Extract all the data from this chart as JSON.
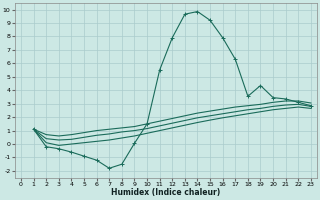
{
  "xlabel": "Humidex (Indice chaleur)",
  "bg_color": "#cce8e4",
  "grid_color": "#aacccc",
  "line_color": "#1a6b5a",
  "xlim": [
    -0.5,
    23.5
  ],
  "ylim": [
    -2.5,
    10.5
  ],
  "xticks": [
    0,
    1,
    2,
    3,
    4,
    5,
    6,
    7,
    8,
    9,
    10,
    11,
    12,
    13,
    14,
    15,
    16,
    17,
    18,
    19,
    20,
    21,
    22,
    23
  ],
  "yticks": [
    -2,
    -1,
    0,
    1,
    2,
    3,
    4,
    5,
    6,
    7,
    8,
    9,
    10
  ],
  "peak_x": [
    1,
    2,
    3,
    4,
    5,
    6,
    7,
    8,
    9,
    10,
    11,
    12,
    13,
    14,
    15,
    16,
    17,
    18,
    19,
    20,
    21,
    22,
    23
  ],
  "peak_y": [
    1.1,
    -0.2,
    -0.35,
    -0.6,
    -0.9,
    -1.2,
    -1.8,
    -1.5,
    0.05,
    1.5,
    5.5,
    7.9,
    9.65,
    9.85,
    9.2,
    7.9,
    6.3,
    3.55,
    4.35,
    3.45,
    3.35,
    3.1,
    2.85
  ],
  "line2_x": [
    1,
    2,
    3,
    4,
    5,
    6,
    7,
    8,
    9,
    10,
    11,
    12,
    13,
    14,
    15,
    16,
    17,
    18,
    19,
    20,
    21,
    22,
    23
  ],
  "line2_y": [
    1.1,
    0.7,
    0.6,
    0.7,
    0.85,
    1.0,
    1.1,
    1.2,
    1.3,
    1.5,
    1.7,
    1.9,
    2.1,
    2.3,
    2.45,
    2.6,
    2.75,
    2.85,
    2.95,
    3.1,
    3.2,
    3.2,
    3.05
  ],
  "line3_x": [
    1,
    2,
    3,
    4,
    5,
    6,
    7,
    8,
    9,
    10,
    11,
    12,
    13,
    14,
    15,
    16,
    17,
    18,
    19,
    20,
    21,
    22,
    23
  ],
  "line3_y": [
    1.1,
    0.4,
    0.3,
    0.35,
    0.5,
    0.65,
    0.75,
    0.9,
    1.0,
    1.15,
    1.35,
    1.55,
    1.75,
    1.95,
    2.1,
    2.25,
    2.4,
    2.55,
    2.65,
    2.8,
    2.9,
    2.95,
    2.8
  ],
  "line4_x": [
    1,
    2,
    3,
    4,
    5,
    6,
    7,
    8,
    9,
    10,
    11,
    12,
    13,
    14,
    15,
    16,
    17,
    18,
    19,
    20,
    21,
    22,
    23
  ],
  "line4_y": [
    1.1,
    0.1,
    -0.1,
    0.0,
    0.1,
    0.2,
    0.3,
    0.45,
    0.6,
    0.8,
    1.0,
    1.2,
    1.4,
    1.6,
    1.78,
    1.95,
    2.1,
    2.25,
    2.4,
    2.55,
    2.65,
    2.75,
    2.65
  ]
}
